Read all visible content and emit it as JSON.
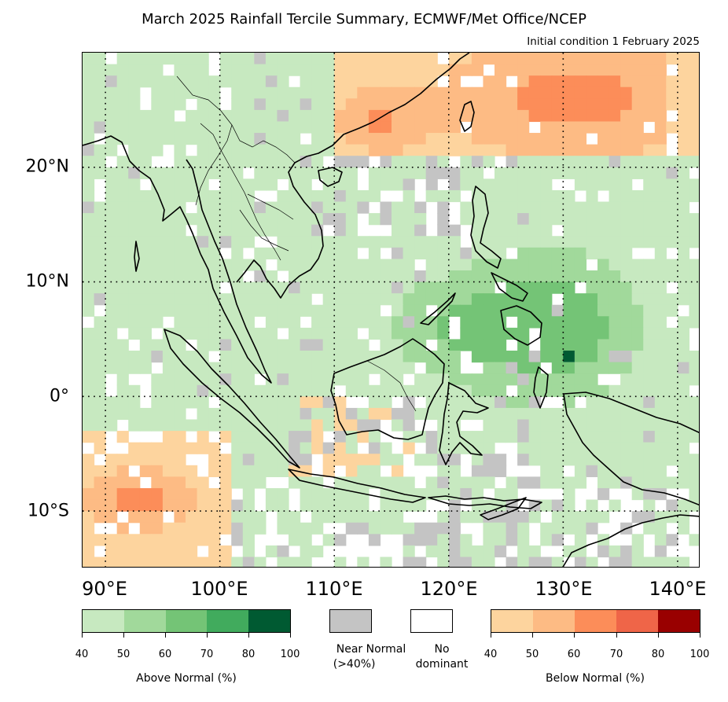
{
  "title": "March 2025 Rainfall Tercile Summary, ECMWF/Met Office/NCEP",
  "subtitle": "Initial condition 1 February 2025",
  "map": {
    "lon_range": [
      88,
      142
    ],
    "lat_range": [
      -15,
      30
    ],
    "lat_labels": [
      "20°N",
      "10°N",
      "0°",
      "10°S"
    ],
    "lon_labels": [
      "90°E",
      "100°E",
      "110°E",
      "120°E",
      "130°E",
      "140°E"
    ],
    "gridlines": "dotted",
    "regions_above_normal": "mainland Southeast Asia, Philippines, Borneo, Sulawesi, western Pacific warm pool",
    "regions_below_normal": "South China Sea north / southern China coast, subtropical western Pacific, eastern Indian Ocean south of equator, Java Sea",
    "regions_near_normal": "scattered cells Java, Nusa Tenggara, Sulawesi, northern South China Sea"
  },
  "legend": {
    "above": {
      "title": "Above Normal (%)",
      "ticks": [
        "40",
        "50",
        "60",
        "70",
        "80",
        "100"
      ],
      "colors": [
        "#c7e9c0",
        "#a1d99b",
        "#74c476",
        "#41ab5d",
        "#005a32"
      ]
    },
    "near": {
      "label_line1": "Near Normal",
      "label_line2": "(>40%)",
      "color": "#c4c4c4"
    },
    "none": {
      "label_line1": "No",
      "label_line2": "dominant",
      "color": "#ffffff"
    },
    "below": {
      "title": "Below Normal (%)",
      "ticks": [
        "40",
        "50",
        "60",
        "70",
        "80",
        "100"
      ],
      "colors": [
        "#fdd49e",
        "#fdbb84",
        "#fc8d59",
        "#ef6548",
        "#990000"
      ]
    }
  }
}
